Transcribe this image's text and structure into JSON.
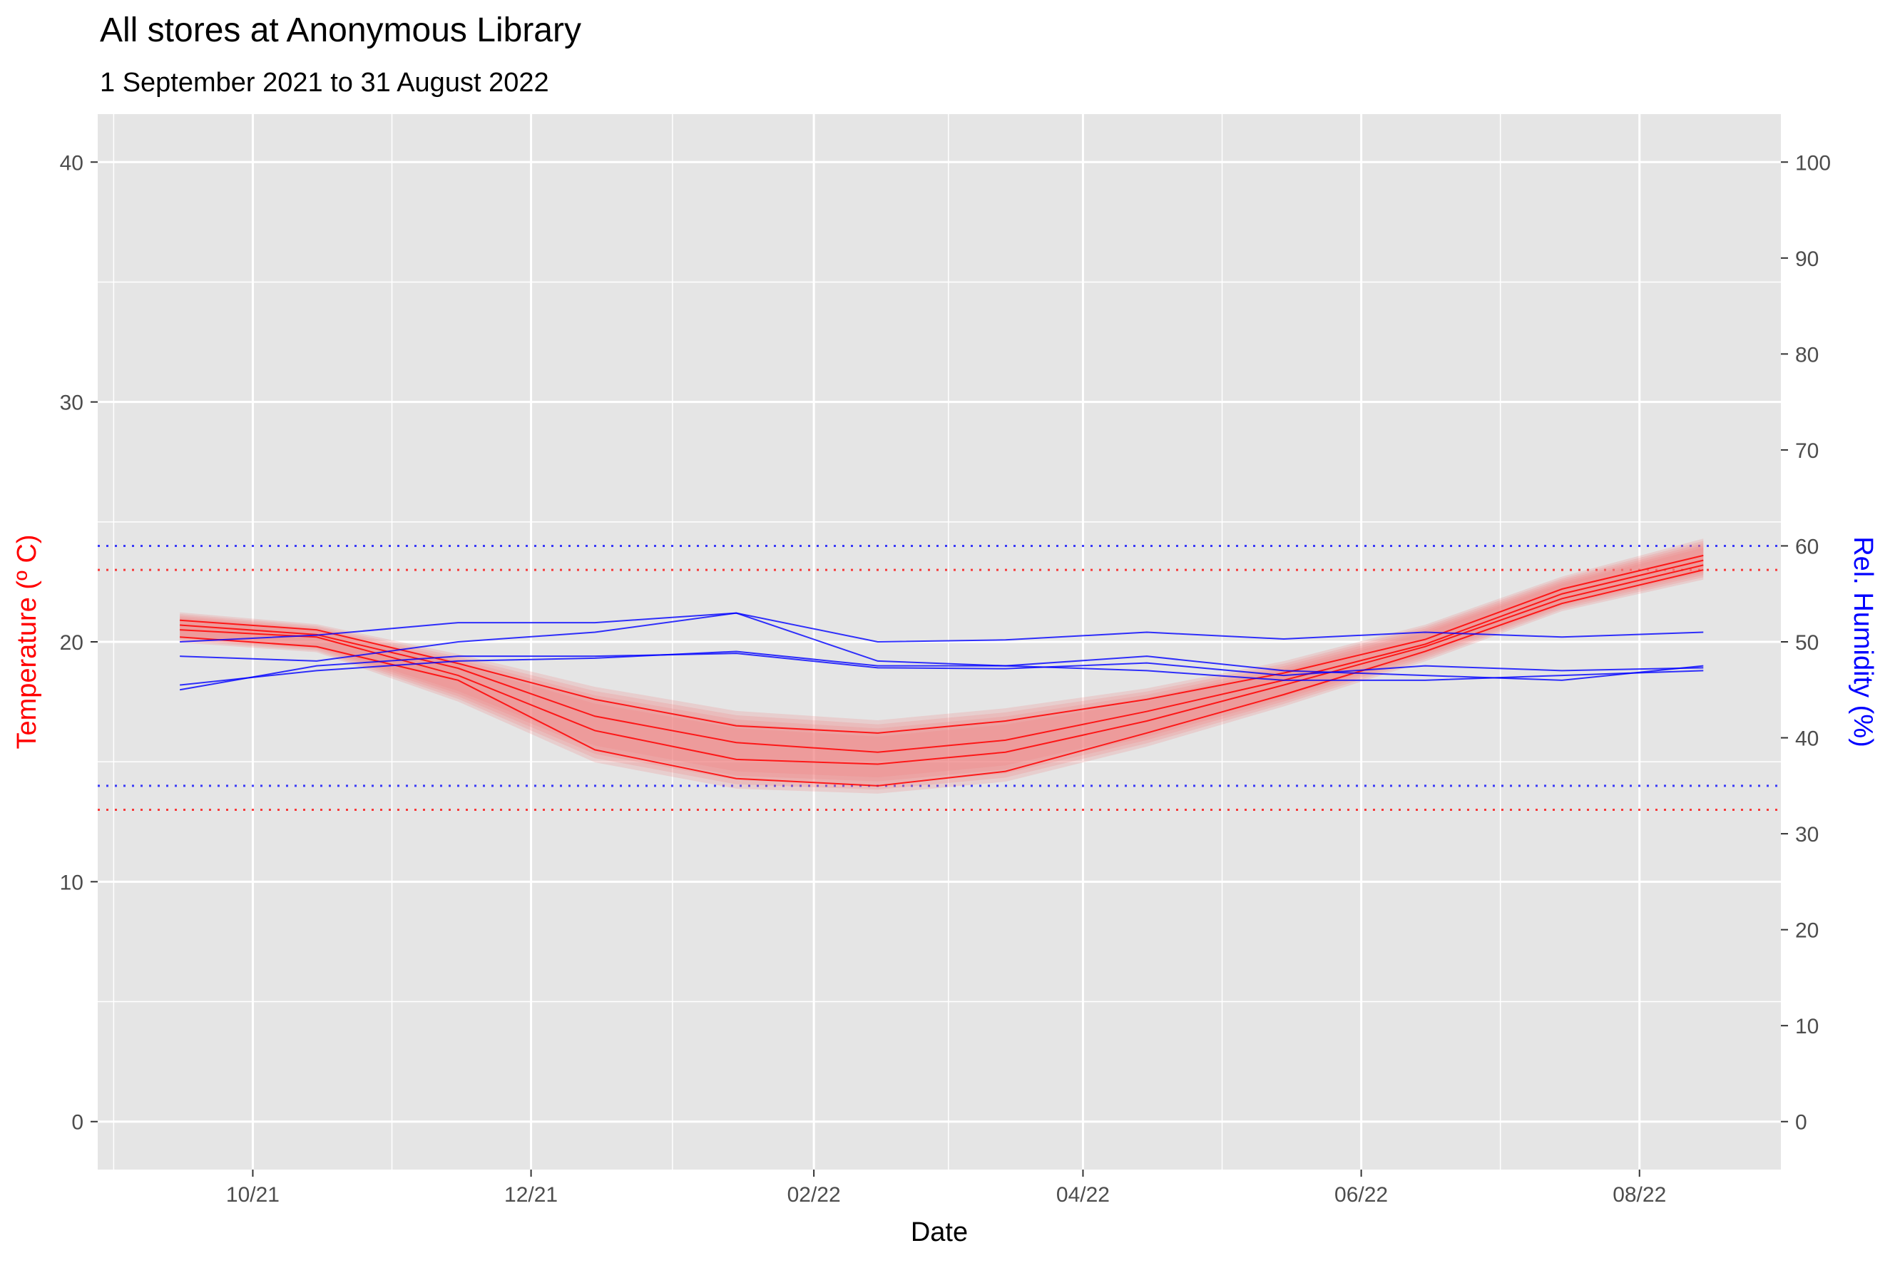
{
  "chart_data": {
    "type": "line",
    "title": "All stores at Anonymous Library",
    "subtitle": "1 September 2021 to 31 August 2022",
    "xlabel": "Date",
    "ylabel_left": "Temperature (º C)",
    "ylabel_right": "Rel. Humidity (%)",
    "colors": {
      "temperature": "#ff0000",
      "humidity": "#0000ff",
      "band": "#f08080",
      "panel": "#e5e5e5",
      "grid": "#ffffff"
    },
    "x": [
      "2021-09-15",
      "2021-10-15",
      "2021-11-15",
      "2021-12-15",
      "2022-01-15",
      "2022-02-15",
      "2022-03-15",
      "2022-04-15",
      "2022-05-15",
      "2022-06-15",
      "2022-07-15",
      "2022-08-15"
    ],
    "xlim": [
      "2021-08-28",
      "2022-09-01"
    ],
    "x_ticks": [
      "2021-10-01",
      "2021-12-01",
      "2022-02-01",
      "2022-04-01",
      "2022-06-01",
      "2022-08-01"
    ],
    "x_tick_labels": [
      "10/21",
      "12/21",
      "02/22",
      "04/22",
      "06/22",
      "08/22"
    ],
    "ylim_left": [
      -2,
      42
    ],
    "y_ticks_left": [
      0,
      10,
      20,
      30,
      40
    ],
    "ylim_right": [
      -5,
      105
    ],
    "y_ticks_right": [
      0,
      10,
      20,
      30,
      40,
      50,
      60,
      70,
      80,
      90,
      100
    ],
    "temperature_series": [
      [
        20.9,
        20.5,
        19.1,
        17.6,
        16.5,
        16.2,
        16.7,
        17.6,
        18.7,
        20.1,
        22.2,
        23.6
      ],
      [
        20.7,
        20.3,
        18.9,
        16.9,
        15.8,
        15.4,
        15.9,
        17.1,
        18.4,
        19.9,
        22.0,
        23.4
      ],
      [
        20.5,
        20.2,
        18.6,
        16.3,
        15.1,
        14.9,
        15.4,
        16.7,
        18.2,
        19.8,
        21.8,
        23.2
      ],
      [
        20.2,
        19.8,
        18.4,
        15.5,
        14.3,
        14.0,
        14.6,
        16.2,
        17.8,
        19.6,
        21.6,
        23.0
      ]
    ],
    "humidity_series": [
      [
        48.5,
        48.0,
        50.0,
        51.0,
        53.0,
        48.0,
        47.5,
        47.0,
        46.0,
        46.0,
        46.5,
        47.0
      ],
      [
        45.5,
        47.0,
        48.0,
        48.3,
        49.0,
        47.5,
        47.5,
        48.5,
        47.0,
        46.5,
        46.0,
        47.5
      ],
      [
        45.0,
        47.5,
        48.5,
        48.5,
        48.8,
        47.3,
        47.2,
        47.8,
        46.5,
        47.5,
        47.0,
        47.3
      ],
      [
        50.0,
        50.7,
        52.0,
        52.0,
        53.0,
        50.0,
        50.2,
        51.0,
        50.3,
        51.0,
        50.5,
        51.0
      ]
    ],
    "temperature_band": {
      "upper": [
        21.3,
        20.8,
        19.6,
        18.3,
        17.3,
        16.9,
        17.4,
        18.2,
        19.3,
        20.8,
        22.8,
        24.4
      ],
      "lower": [
        19.9,
        19.5,
        17.4,
        14.8,
        13.7,
        13.5,
        14.0,
        15.5,
        17.2,
        19.1,
        21.2,
        22.5
      ]
    },
    "reference_lines": {
      "temperature": [
        13,
        23
      ],
      "humidity": [
        35,
        60
      ]
    },
    "grid": true,
    "legend": "none"
  }
}
